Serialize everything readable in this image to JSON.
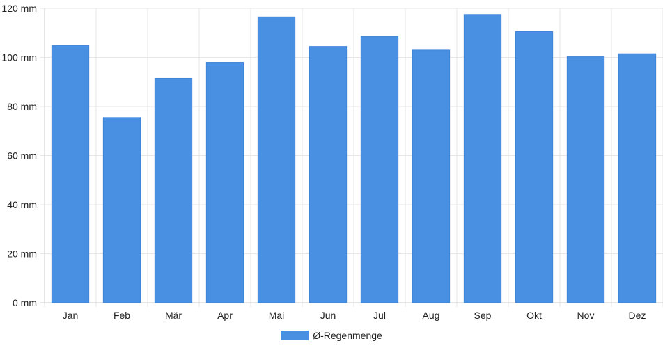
{
  "chart_data": {
    "type": "bar",
    "categories": [
      "Jan",
      "Feb",
      "Mär",
      "Apr",
      "Mai",
      "Jun",
      "Jul",
      "Aug",
      "Sep",
      "Okt",
      "Nov",
      "Dez"
    ],
    "series": [
      {
        "name": "Ø-Regenmenge",
        "values": [
          105,
          75.5,
          91.5,
          98,
          116.5,
          104.5,
          108.5,
          103,
          117.5,
          110.5,
          100.5,
          101.5
        ]
      }
    ],
    "y_ticks": [
      "0 mm",
      "20 mm",
      "40 mm",
      "60 mm",
      "80 mm",
      "100 mm",
      "120 mm"
    ],
    "y_tick_values": [
      0,
      20,
      40,
      60,
      80,
      100,
      120
    ],
    "ylim": [
      0,
      120
    ],
    "ylabel_unit": "mm",
    "grid": true,
    "legend_position": "bottom",
    "colors": {
      "bar": "#4a90e2",
      "grid": "#e6e6e6",
      "axis": "#cccccc"
    }
  }
}
